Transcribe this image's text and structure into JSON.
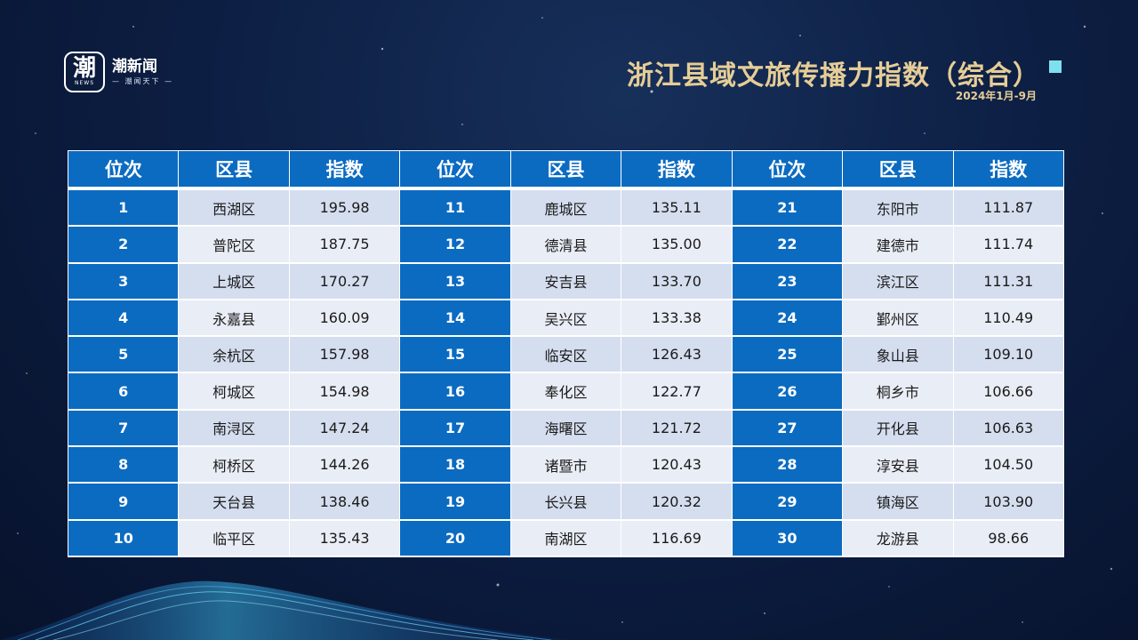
{
  "brand": {
    "logo_char": "潮",
    "logo_news": "NEWS",
    "name": "潮新闻",
    "slogan": "— 潮闻天下 —"
  },
  "header": {
    "title": "浙江县域文旅传播力指数（综合）",
    "subtitle": "2024年1月-9月"
  },
  "table": {
    "headers": [
      "位次",
      "区县",
      "指数",
      "位次",
      "区县",
      "指数",
      "位次",
      "区县",
      "指数"
    ],
    "rows": [
      [
        "1",
        "西湖区",
        "195.98",
        "11",
        "鹿城区",
        "135.11",
        "21",
        "东阳市",
        "111.87"
      ],
      [
        "2",
        "普陀区",
        "187.75",
        "12",
        "德清县",
        "135.00",
        "22",
        "建德市",
        "111.74"
      ],
      [
        "3",
        "上城区",
        "170.27",
        "13",
        "安吉县",
        "133.70",
        "23",
        "滨江区",
        "111.31"
      ],
      [
        "4",
        "永嘉县",
        "160.09",
        "14",
        "吴兴区",
        "133.38",
        "24",
        "鄞州区",
        "110.49"
      ],
      [
        "5",
        "余杭区",
        "157.98",
        "15",
        "临安区",
        "126.43",
        "25",
        "象山县",
        "109.10"
      ],
      [
        "6",
        "柯城区",
        "154.98",
        "16",
        "奉化区",
        "122.77",
        "26",
        "桐乡市",
        "106.66"
      ],
      [
        "7",
        "南浔区",
        "147.24",
        "17",
        "海曙区",
        "121.72",
        "27",
        "开化县",
        "106.63"
      ],
      [
        "8",
        "柯桥区",
        "144.26",
        "18",
        "诸暨市",
        "120.43",
        "28",
        "淳安县",
        "104.50"
      ],
      [
        "9",
        "天台县",
        "138.46",
        "19",
        "长兴县",
        "120.32",
        "29",
        "镇海区",
        "103.90"
      ],
      [
        "10",
        "临平区",
        "135.43",
        "20",
        "南湖区",
        "116.69",
        "30",
        "龙游县",
        "98.66"
      ]
    ]
  },
  "colors": {
    "header_blue": "#0b6bc1",
    "title_gold": "#e6cd96",
    "row_light": "#d5deef",
    "row_lighter": "#e9edf6",
    "accent_square": "#7ee0ee"
  }
}
